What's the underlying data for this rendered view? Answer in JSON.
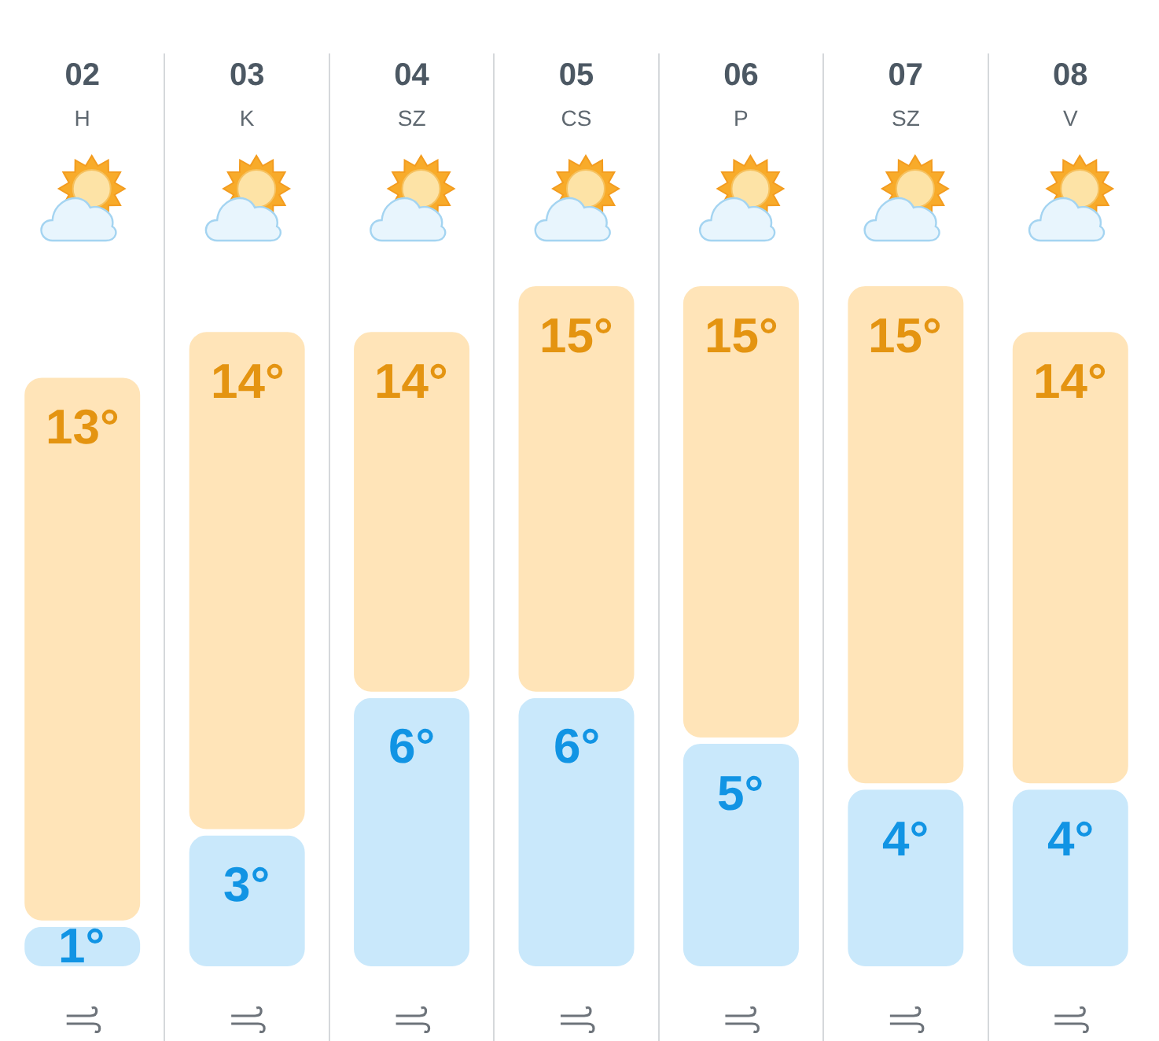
{
  "chart_data": {
    "type": "bar",
    "stacked": true,
    "categories": [
      "02\nH",
      "03\nK",
      "04\nSZ",
      "05\nCS",
      "06\nP",
      "07\nSZ",
      "08\nV"
    ],
    "series": [
      {
        "color": "#c9e8fb",
        "values": [
          1,
          3,
          6,
          6,
          5,
          4,
          4
        ],
        "value_labels": [
          "1°",
          "3°",
          "6°",
          "6°",
          "5°",
          "4°",
          "4°"
        ]
      },
      {
        "color": "#ffe4b8",
        "values": [
          12,
          11,
          8,
          9,
          10,
          11,
          10
        ]
      }
    ],
    "totals": [
      "13°",
      "14°",
      "14°",
      "15°",
      "15°",
      "15°",
      "14°"
    ],
    "tick_labels": "x",
    "grid": "x"
  }
}
